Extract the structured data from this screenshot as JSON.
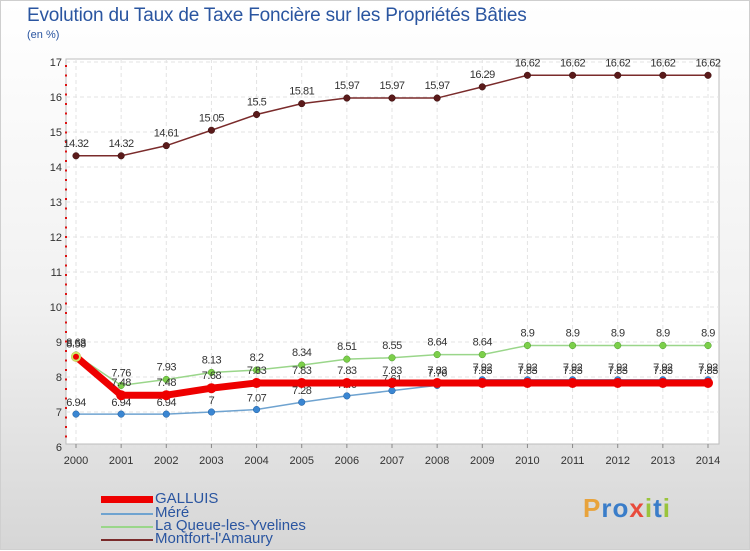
{
  "title": "Evolution du Taux de Taxe Foncière sur les Propriétés Bâties",
  "subtitle": "(en %)",
  "logo": {
    "letters": [
      "P",
      "r",
      "o",
      "x",
      "i",
      "t",
      "i"
    ],
    "colors": [
      "#e8a33c",
      "#3a7dc9",
      "#3a7dc9",
      "#e84b3c",
      "#9ac43c",
      "#3a7dc9",
      "#9ac43c"
    ]
  },
  "chart_data": {
    "type": "line",
    "title": "Evolution du Taux de Taxe Foncière sur les Propriétés Bâties",
    "ylabel": "(en %)",
    "xlabel": "",
    "ylim": [
      6,
      17
    ],
    "yticks": [
      6,
      7,
      8,
      9,
      10,
      11,
      12,
      13,
      14,
      15,
      16,
      17
    ],
    "categories": [
      "2000",
      "2001",
      "2002",
      "2003",
      "2004",
      "2005",
      "2006",
      "2007",
      "2008",
      "2009",
      "2010",
      "2011",
      "2012",
      "2013",
      "2014"
    ],
    "series": [
      {
        "name": "Montfort-l'Amaury",
        "color": "#7a2b2b",
        "marker": "#5a1a1a",
        "values": [
          14.32,
          14.32,
          14.61,
          15.05,
          15.5,
          15.81,
          15.97,
          15.97,
          15.97,
          16.29,
          16.62,
          16.62,
          16.62,
          16.62,
          16.62
        ]
      },
      {
        "name": "La Queue-les-Yvelines",
        "color": "#9ad68a",
        "marker": "#7ccf4a",
        "values": [
          8.63,
          7.76,
          7.93,
          8.13,
          8.2,
          8.34,
          8.51,
          8.55,
          8.64,
          8.64,
          8.9,
          8.9,
          8.9,
          8.9,
          8.9
        ]
      },
      {
        "name": "Méré",
        "color": "#6fa3d0",
        "marker": "#3a86d2",
        "values": [
          6.94,
          6.94,
          6.94,
          7,
          7.07,
          7.28,
          7.46,
          7.61,
          7.76,
          7.92,
          7.92,
          7.92,
          7.92,
          7.92,
          7.92
        ]
      },
      {
        "name": "GALLUIS",
        "color": "#ee0000",
        "marker": "#ee0000",
        "values": [
          8.58,
          7.48,
          7.48,
          7.68,
          7.83,
          7.83,
          7.83,
          7.83,
          7.83,
          7.83,
          7.83,
          7.83,
          7.83,
          7.83,
          7.83
        ]
      }
    ],
    "legend": {
      "placement": "bottom-left",
      "entries": [
        "GALLUIS",
        "Méré",
        "La Queue-les-Yvelines",
        "Montfort-l'Amaury"
      ]
    }
  }
}
